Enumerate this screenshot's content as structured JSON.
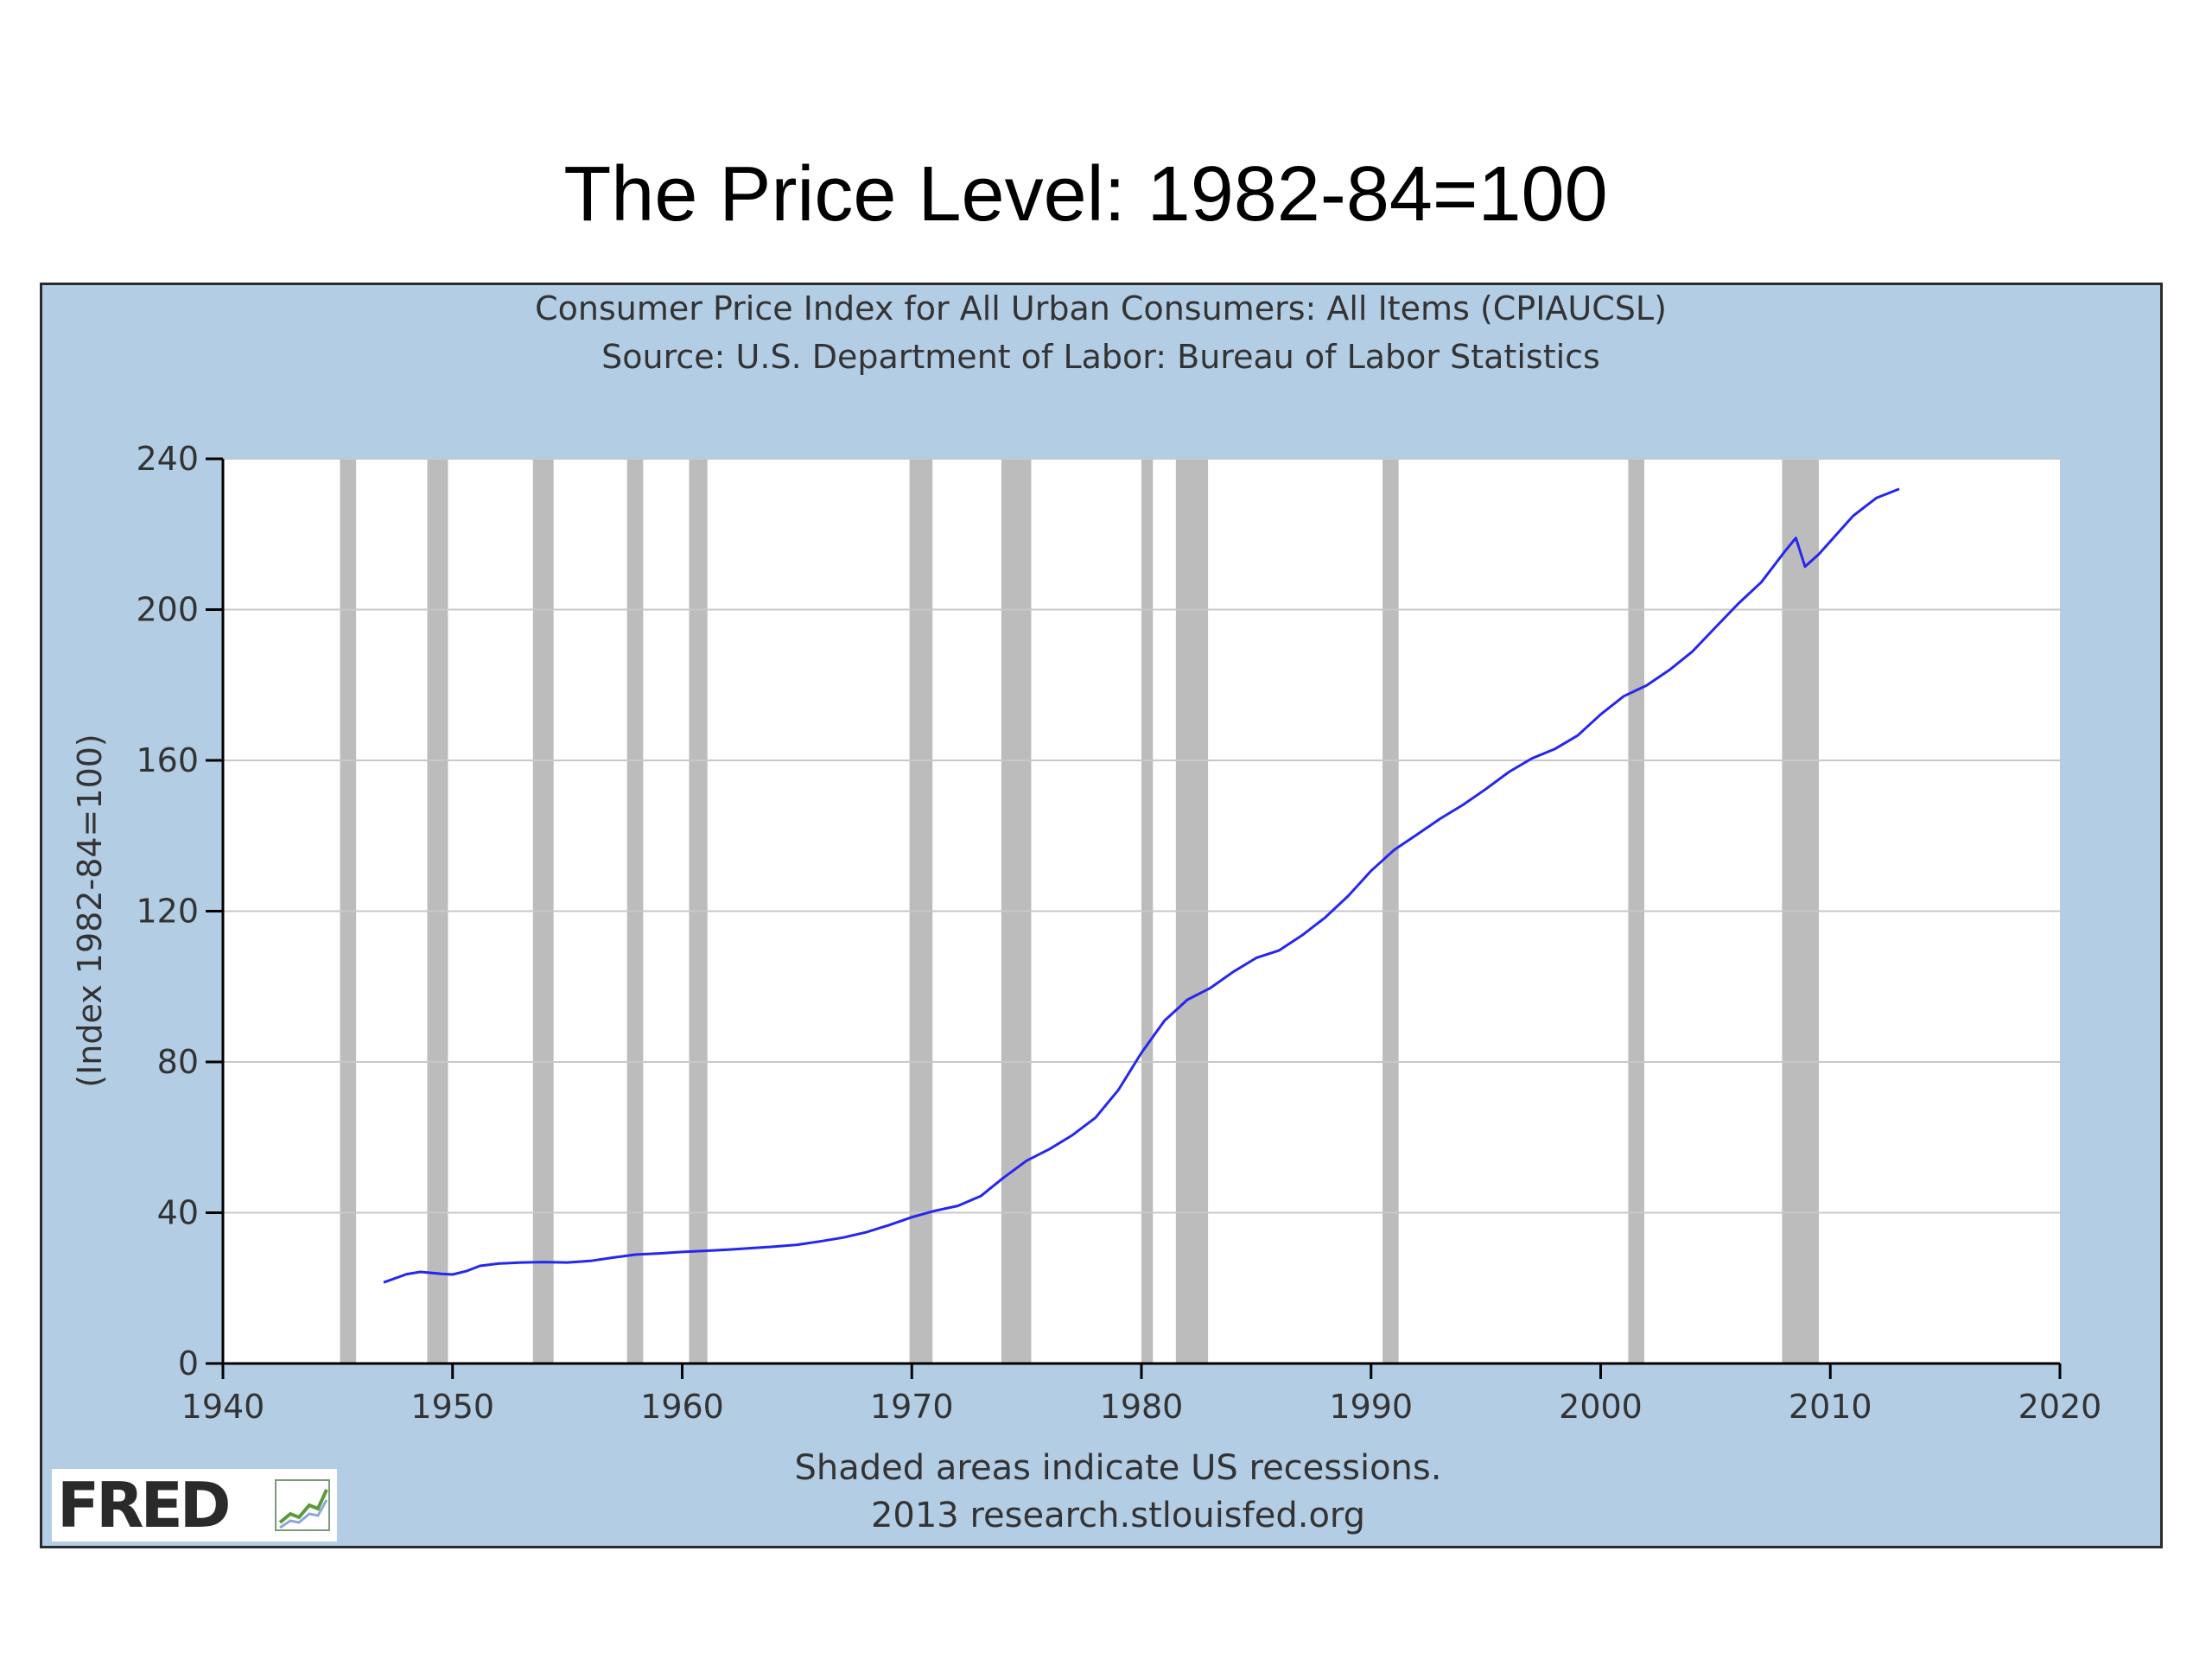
{
  "slide_title": "The Price Level:  1982-84=100",
  "logo_text": "FRED",
  "logo_icon": "chart-line-icon",
  "colors": {
    "panel_background": "#b3cde5",
    "plot_background": "#ffffff",
    "recession_shade": "#bcbcbc",
    "series_line": "#2626ee",
    "gridline": "#c8c8c8",
    "axis": "#000000",
    "text": "#333333"
  },
  "chart_data": {
    "type": "line",
    "title": "Consumer Price Index for All Urban Consumers: All Items (CPIAUCSL)",
    "subtitle": "Source: U.S. Department of Labor: Bureau of Labor Statistics",
    "ylabel": "(Index 1982-84=100)",
    "xlabel": "",
    "xlim": [
      1940,
      2020
    ],
    "ylim": [
      0,
      240
    ],
    "x_ticks": [
      "1940",
      "1950",
      "1960",
      "1970",
      "1980",
      "1990",
      "2000",
      "2010",
      "2020"
    ],
    "y_ticks": [
      "0",
      "40",
      "80",
      "120",
      "160",
      "200",
      "240"
    ],
    "grid": "horizontal",
    "notes": [
      "Shaded areas indicate US recessions.",
      "2013 research.stlouisfed.org"
    ],
    "recessions": [
      [
        1945.1,
        1945.8
      ],
      [
        1948.9,
        1949.8
      ],
      [
        1953.5,
        1954.4
      ],
      [
        1957.6,
        1958.3
      ],
      [
        1960.3,
        1961.1
      ],
      [
        1969.9,
        1970.9
      ],
      [
        1973.9,
        1975.2
      ],
      [
        1980.0,
        1980.5
      ],
      [
        1981.5,
        1982.9
      ],
      [
        1990.5,
        1991.2
      ],
      [
        2001.2,
        2001.9
      ],
      [
        2007.9,
        2009.5
      ]
    ],
    "series": [
      {
        "values": [
          [
            1947.0,
            21.5
          ],
          [
            1948.0,
            23.7
          ],
          [
            1948.6,
            24.3
          ],
          [
            1949.5,
            23.8
          ],
          [
            1950.0,
            23.6
          ],
          [
            1950.6,
            24.5
          ],
          [
            1951.2,
            25.9
          ],
          [
            1952.0,
            26.5
          ],
          [
            1953.0,
            26.8
          ],
          [
            1954.0,
            26.9
          ],
          [
            1955.0,
            26.8
          ],
          [
            1956.0,
            27.2
          ],
          [
            1957.0,
            28.1
          ],
          [
            1958.0,
            28.9
          ],
          [
            1959.0,
            29.2
          ],
          [
            1960.0,
            29.6
          ],
          [
            1961.0,
            29.9
          ],
          [
            1962.0,
            30.2
          ],
          [
            1963.0,
            30.6
          ],
          [
            1964.0,
            31.0
          ],
          [
            1965.0,
            31.5
          ],
          [
            1966.0,
            32.4
          ],
          [
            1967.0,
            33.4
          ],
          [
            1968.0,
            34.8
          ],
          [
            1969.0,
            36.7
          ],
          [
            1970.0,
            38.8
          ],
          [
            1971.0,
            40.5
          ],
          [
            1972.0,
            41.8
          ],
          [
            1973.0,
            44.4
          ],
          [
            1974.0,
            49.3
          ],
          [
            1975.0,
            53.8
          ],
          [
            1976.0,
            56.9
          ],
          [
            1977.0,
            60.6
          ],
          [
            1978.0,
            65.2
          ],
          [
            1979.0,
            72.6
          ],
          [
            1980.0,
            82.4
          ],
          [
            1981.0,
            90.9
          ],
          [
            1982.0,
            96.5
          ],
          [
            1983.0,
            99.6
          ],
          [
            1984.0,
            103.9
          ],
          [
            1985.0,
            107.6
          ],
          [
            1986.0,
            109.6
          ],
          [
            1987.0,
            113.6
          ],
          [
            1988.0,
            118.3
          ],
          [
            1989.0,
            124.0
          ],
          [
            1990.0,
            130.7
          ],
          [
            1991.0,
            136.2
          ],
          [
            1992.0,
            140.3
          ],
          [
            1993.0,
            144.5
          ],
          [
            1994.0,
            148.2
          ],
          [
            1995.0,
            152.4
          ],
          [
            1996.0,
            156.9
          ],
          [
            1997.0,
            160.5
          ],
          [
            1998.0,
            163.0
          ],
          [
            1999.0,
            166.6
          ],
          [
            2000.0,
            172.2
          ],
          [
            2001.0,
            177.0
          ],
          [
            2002.0,
            179.9
          ],
          [
            2003.0,
            184.0
          ],
          [
            2004.0,
            188.9
          ],
          [
            2005.0,
            195.3
          ],
          [
            2006.0,
            201.6
          ],
          [
            2007.0,
            207.3
          ],
          [
            2008.0,
            215.3
          ],
          [
            2008.5,
            219.0
          ],
          [
            2008.9,
            211.4
          ],
          [
            2009.5,
            214.7
          ],
          [
            2010.0,
            218.1
          ],
          [
            2011.0,
            224.9
          ],
          [
            2012.0,
            229.6
          ],
          [
            2013.0,
            232.0
          ]
        ]
      }
    ]
  }
}
